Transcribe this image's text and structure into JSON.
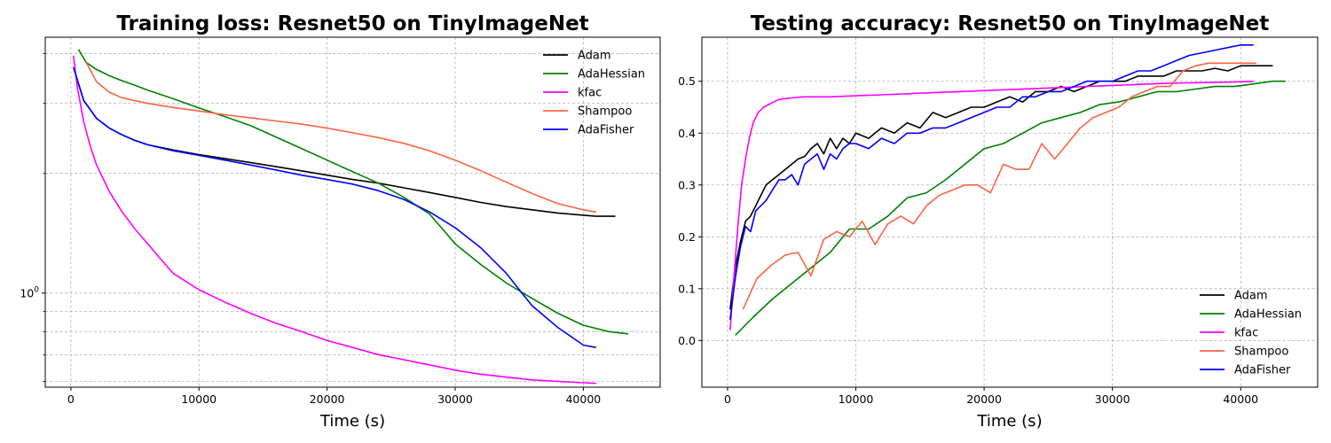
{
  "chart_data": [
    {
      "type": "line",
      "title": "Training loss: Resnet50 on TinyImageNet",
      "xlabel": "Time (s)",
      "ylabel": "",
      "yscale": "log",
      "xlim": [
        -2000,
        46000
      ],
      "ylim": [
        0.58,
        4.4
      ],
      "xticks": [
        0,
        10000,
        20000,
        30000,
        40000
      ],
      "yticks": [
        {
          "value": 1.0,
          "label": "10^0"
        }
      ],
      "ygrid_minor": [
        0.6,
        0.7,
        0.8,
        0.9,
        2,
        3,
        4
      ],
      "grid": true,
      "legend_position": "top-right",
      "series": [
        {
          "name": "Adam",
          "color": "#000000",
          "x": [
            200,
            1000,
            2000,
            3000,
            4000,
            5000,
            6000,
            8000,
            10000,
            12000,
            14000,
            16000,
            18000,
            20000,
            22000,
            24000,
            26000,
            28000,
            30000,
            32000,
            34000,
            36000,
            38000,
            40000,
            41000,
            42500
          ],
          "y": [
            3.7,
            3.05,
            2.75,
            2.6,
            2.5,
            2.42,
            2.36,
            2.29,
            2.23,
            2.18,
            2.13,
            2.08,
            2.03,
            1.98,
            1.93,
            1.89,
            1.84,
            1.79,
            1.74,
            1.69,
            1.65,
            1.62,
            1.59,
            1.57,
            1.56,
            1.56
          ]
        },
        {
          "name": "AdaHessian",
          "color": "#008000",
          "x": [
            600,
            1200,
            2000,
            3000,
            4000,
            5000,
            6000,
            8000,
            10000,
            12000,
            14000,
            16000,
            18000,
            20000,
            22000,
            24000,
            26000,
            28000,
            29000,
            30000,
            32000,
            34000,
            36000,
            38000,
            40000,
            42000,
            43500
          ],
          "y": [
            4.1,
            3.8,
            3.65,
            3.52,
            3.42,
            3.33,
            3.24,
            3.08,
            2.92,
            2.78,
            2.64,
            2.47,
            2.31,
            2.16,
            2.02,
            1.89,
            1.74,
            1.58,
            1.45,
            1.33,
            1.18,
            1.06,
            0.97,
            0.89,
            0.83,
            0.8,
            0.79
          ]
        },
        {
          "name": "kfac",
          "color": "#ff00ff",
          "x": [
            200,
            500,
            1000,
            1500,
            2000,
            3000,
            4000,
            5000,
            6000,
            7000,
            8000,
            10000,
            12000,
            14000,
            16000,
            18000,
            20000,
            22000,
            24000,
            26000,
            28000,
            30000,
            32000,
            34000,
            36000,
            38000,
            40000,
            41000
          ],
          "y": [
            3.95,
            3.3,
            2.7,
            2.35,
            2.1,
            1.8,
            1.6,
            1.45,
            1.33,
            1.22,
            1.12,
            1.02,
            0.95,
            0.89,
            0.84,
            0.8,
            0.76,
            0.73,
            0.7,
            0.68,
            0.66,
            0.64,
            0.625,
            0.615,
            0.605,
            0.6,
            0.595,
            0.593
          ]
        },
        {
          "name": "Shampoo",
          "color": "#ff6347",
          "x": [
            1200,
            2000,
            3000,
            4000,
            6000,
            8000,
            10000,
            12000,
            14000,
            16000,
            18000,
            20000,
            22000,
            24000,
            26000,
            28000,
            30000,
            32000,
            34000,
            36000,
            38000,
            40000,
            41000
          ],
          "y": [
            3.8,
            3.4,
            3.2,
            3.1,
            3.0,
            2.93,
            2.87,
            2.81,
            2.76,
            2.71,
            2.66,
            2.6,
            2.53,
            2.46,
            2.38,
            2.28,
            2.16,
            2.03,
            1.9,
            1.78,
            1.68,
            1.62,
            1.6
          ]
        },
        {
          "name": "AdaFisher",
          "color": "#0000ff",
          "x": [
            200,
            1000,
            2000,
            3000,
            4000,
            5000,
            6000,
            8000,
            10000,
            12000,
            14000,
            16000,
            18000,
            20000,
            22000,
            24000,
            26000,
            28000,
            30000,
            32000,
            34000,
            35000,
            36000,
            38000,
            40000,
            41000
          ],
          "y": [
            3.7,
            3.05,
            2.75,
            2.6,
            2.5,
            2.42,
            2.36,
            2.28,
            2.22,
            2.16,
            2.1,
            2.04,
            1.98,
            1.93,
            1.88,
            1.81,
            1.72,
            1.6,
            1.46,
            1.3,
            1.12,
            1.02,
            0.93,
            0.82,
            0.74,
            0.73
          ]
        }
      ]
    },
    {
      "type": "line",
      "title": "Testing accuracy: Resnet50 on TinyImageNet",
      "xlabel": "Time (s)",
      "ylabel": "",
      "yscale": "linear",
      "xlim": [
        -2000,
        46000
      ],
      "ylim": [
        -0.09,
        0.585
      ],
      "xticks": [
        0,
        10000,
        20000,
        30000,
        40000
      ],
      "yticks": [
        {
          "value": 0.0,
          "label": "0.0"
        },
        {
          "value": 0.1,
          "label": "0.1"
        },
        {
          "value": 0.2,
          "label": "0.2"
        },
        {
          "value": 0.3,
          "label": "0.3"
        },
        {
          "value": 0.4,
          "label": "0.4"
        },
        {
          "value": 0.5,
          "label": "0.5"
        }
      ],
      "grid": true,
      "legend_position": "bottom-right",
      "series": [
        {
          "name": "Adam",
          "color": "#000000",
          "x": [
            200,
            600,
            1000,
            1400,
            1800,
            2200,
            2600,
            3000,
            3500,
            4000,
            4500,
            5000,
            5500,
            6000,
            6500,
            7000,
            7500,
            8000,
            8500,
            9000,
            9500,
            10000,
            11000,
            12000,
            13000,
            14000,
            15000,
            16000,
            17000,
            18000,
            19000,
            20000,
            21000,
            22000,
            23000,
            24000,
            25000,
            26000,
            27000,
            28000,
            29000,
            30000,
            31000,
            32000,
            33000,
            34000,
            35000,
            36000,
            37000,
            38000,
            39000,
            40000,
            41000,
            42000,
            42500
          ],
          "y": [
            0.06,
            0.14,
            0.19,
            0.23,
            0.24,
            0.26,
            0.28,
            0.3,
            0.31,
            0.32,
            0.33,
            0.34,
            0.35,
            0.355,
            0.37,
            0.38,
            0.36,
            0.39,
            0.37,
            0.39,
            0.38,
            0.4,
            0.39,
            0.41,
            0.4,
            0.42,
            0.41,
            0.44,
            0.43,
            0.44,
            0.45,
            0.45,
            0.46,
            0.47,
            0.46,
            0.48,
            0.48,
            0.49,
            0.48,
            0.49,
            0.5,
            0.5,
            0.5,
            0.51,
            0.51,
            0.51,
            0.52,
            0.52,
            0.52,
            0.525,
            0.52,
            0.53,
            0.53,
            0.53,
            0.53
          ]
        },
        {
          "name": "AdaHessian",
          "color": "#008000",
          "x": [
            600,
            2000,
            3500,
            5000,
            6500,
            8000,
            9500,
            11000,
            12500,
            14000,
            15500,
            17000,
            18500,
            20000,
            21500,
            23000,
            24500,
            26000,
            27500,
            29000,
            30500,
            32000,
            33500,
            35000,
            36500,
            38000,
            39500,
            41000,
            42500,
            43500
          ],
          "y": [
            0.01,
            0.045,
            0.08,
            0.11,
            0.14,
            0.17,
            0.215,
            0.215,
            0.24,
            0.275,
            0.285,
            0.31,
            0.34,
            0.37,
            0.38,
            0.4,
            0.42,
            0.43,
            0.44,
            0.455,
            0.46,
            0.47,
            0.48,
            0.48,
            0.485,
            0.49,
            0.49,
            0.495,
            0.5,
            0.5
          ]
        },
        {
          "name": "kfac",
          "color": "#ff00ff",
          "x": [
            200,
            500,
            800,
            1100,
            1400,
            1700,
            2000,
            2400,
            2800,
            3200,
            3600,
            4000,
            5000,
            6000,
            7000,
            8000,
            10000,
            12000,
            14000,
            16000,
            18000,
            20000,
            22000,
            24000,
            26000,
            28000,
            30000,
            32000,
            34000,
            36000,
            38000,
            40000,
            41000
          ],
          "y": [
            0.02,
            0.12,
            0.22,
            0.3,
            0.35,
            0.39,
            0.42,
            0.44,
            0.45,
            0.455,
            0.46,
            0.465,
            0.468,
            0.47,
            0.47,
            0.47,
            0.472,
            0.474,
            0.476,
            0.478,
            0.48,
            0.482,
            0.484,
            0.486,
            0.488,
            0.49,
            0.492,
            0.494,
            0.496,
            0.497,
            0.498,
            0.499,
            0.5
          ]
        },
        {
          "name": "Shampoo",
          "color": "#ff6347",
          "x": [
            1200,
            2300,
            3400,
            4500,
            5500,
            6500,
            7500,
            8500,
            9500,
            10500,
            11500,
            12500,
            13500,
            14500,
            15500,
            16500,
            17500,
            18500,
            19500,
            20500,
            21500,
            22500,
            23500,
            24500,
            25500,
            26500,
            27500,
            28500,
            29500,
            30500,
            31500,
            32500,
            33500,
            34500,
            35500,
            36500,
            37500,
            38500,
            39500,
            40500,
            41200
          ],
          "y": [
            0.06,
            0.12,
            0.145,
            0.165,
            0.17,
            0.125,
            0.195,
            0.21,
            0.2,
            0.23,
            0.185,
            0.225,
            0.24,
            0.225,
            0.26,
            0.28,
            0.29,
            0.3,
            0.3,
            0.285,
            0.34,
            0.33,
            0.33,
            0.38,
            0.35,
            0.38,
            0.41,
            0.43,
            0.44,
            0.45,
            0.47,
            0.48,
            0.49,
            0.49,
            0.52,
            0.53,
            0.535,
            0.535,
            0.535,
            0.535,
            0.535
          ]
        },
        {
          "name": "AdaFisher",
          "color": "#0000ff",
          "x": [
            200,
            600,
            1000,
            1400,
            1800,
            2200,
            2600,
            3000,
            3500,
            4000,
            4500,
            5000,
            5500,
            6000,
            6500,
            7000,
            7500,
            8000,
            8500,
            9000,
            9500,
            10000,
            11000,
            12000,
            13000,
            14000,
            15000,
            16000,
            17000,
            18000,
            19000,
            20000,
            21000,
            22000,
            23000,
            24000,
            25000,
            26000,
            27000,
            28000,
            29000,
            30000,
            31000,
            32000,
            33000,
            34000,
            35000,
            36000,
            37000,
            38000,
            39000,
            40000,
            41000
          ],
          "y": [
            0.04,
            0.12,
            0.18,
            0.22,
            0.21,
            0.25,
            0.26,
            0.27,
            0.29,
            0.31,
            0.31,
            0.32,
            0.3,
            0.34,
            0.35,
            0.36,
            0.33,
            0.36,
            0.35,
            0.37,
            0.38,
            0.38,
            0.37,
            0.39,
            0.38,
            0.4,
            0.4,
            0.41,
            0.41,
            0.42,
            0.43,
            0.44,
            0.45,
            0.45,
            0.47,
            0.47,
            0.48,
            0.48,
            0.49,
            0.5,
            0.5,
            0.5,
            0.51,
            0.52,
            0.52,
            0.53,
            0.54,
            0.55,
            0.555,
            0.56,
            0.565,
            0.57,
            0.57
          ]
        }
      ]
    }
  ]
}
